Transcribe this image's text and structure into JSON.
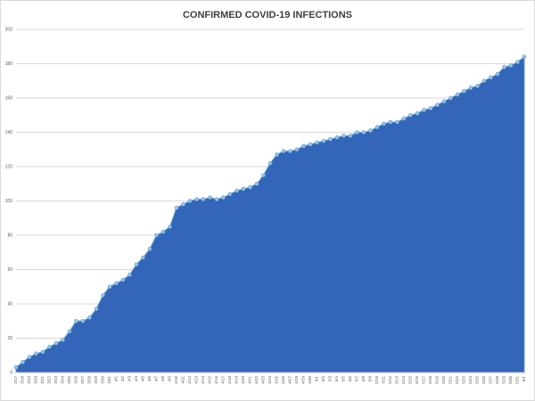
{
  "chart_data": {
    "type": "area",
    "title": "CONFIRMED COVID-19 INFECTIONS",
    "categories": [
      "3/17",
      "3/18",
      "3/19",
      "3/20",
      "3/21",
      "3/22",
      "3/23",
      "3/24",
      "3/25",
      "3/26",
      "3/27",
      "3/28",
      "3/29",
      "3/30",
      "3/31",
      "4/1",
      "4/2",
      "4/3",
      "4/4",
      "4/5",
      "4/6",
      "4/7",
      "4/8",
      "4/9",
      "4/10",
      "4/11",
      "4/12",
      "4/13",
      "4/14",
      "4/15",
      "4/16",
      "4/17",
      "4/18",
      "4/19",
      "4/20",
      "4/21",
      "4/22",
      "4/23",
      "4/24",
      "4/25",
      "4/26",
      "4/27",
      "4/28",
      "4/29",
      "4/30",
      "5/1",
      "5/2",
      "5/3",
      "5/4",
      "5/5",
      "5/6",
      "5/7",
      "5/8",
      "5/9",
      "5/10",
      "5/11",
      "5/12",
      "5/13",
      "5/14",
      "5/15",
      "5/16",
      "5/17",
      "5/18",
      "5/19",
      "5/20",
      "5/21",
      "5/22",
      "5/23",
      "5/24",
      "5/25",
      "5/26",
      "5/27",
      "5/28",
      "5/29",
      "5/30",
      "5/31",
      "6/1"
    ],
    "values": [
      3,
      6,
      9,
      11,
      12,
      15,
      17,
      19,
      24,
      30,
      30,
      32,
      37,
      45,
      50,
      52,
      54,
      57,
      63,
      67,
      72,
      80,
      82,
      85,
      96,
      98,
      100,
      101,
      101,
      102,
      101,
      102,
      104,
      106,
      107,
      108,
      110,
      115,
      122,
      127,
      129,
      129,
      130,
      132,
      133,
      134,
      135,
      136,
      137,
      138,
      138,
      140,
      140,
      141,
      143,
      145,
      146,
      146,
      148,
      150,
      151,
      153,
      154,
      156,
      158,
      160,
      162,
      164,
      166,
      167,
      170,
      172,
      174,
      178,
      179,
      181,
      184
    ],
    "color": "#3366b8",
    "ylim": [
      0,
      200
    ],
    "yticks": [
      0,
      20,
      40,
      60,
      80,
      100,
      120,
      140,
      160,
      180,
      200
    ],
    "grid": true
  }
}
